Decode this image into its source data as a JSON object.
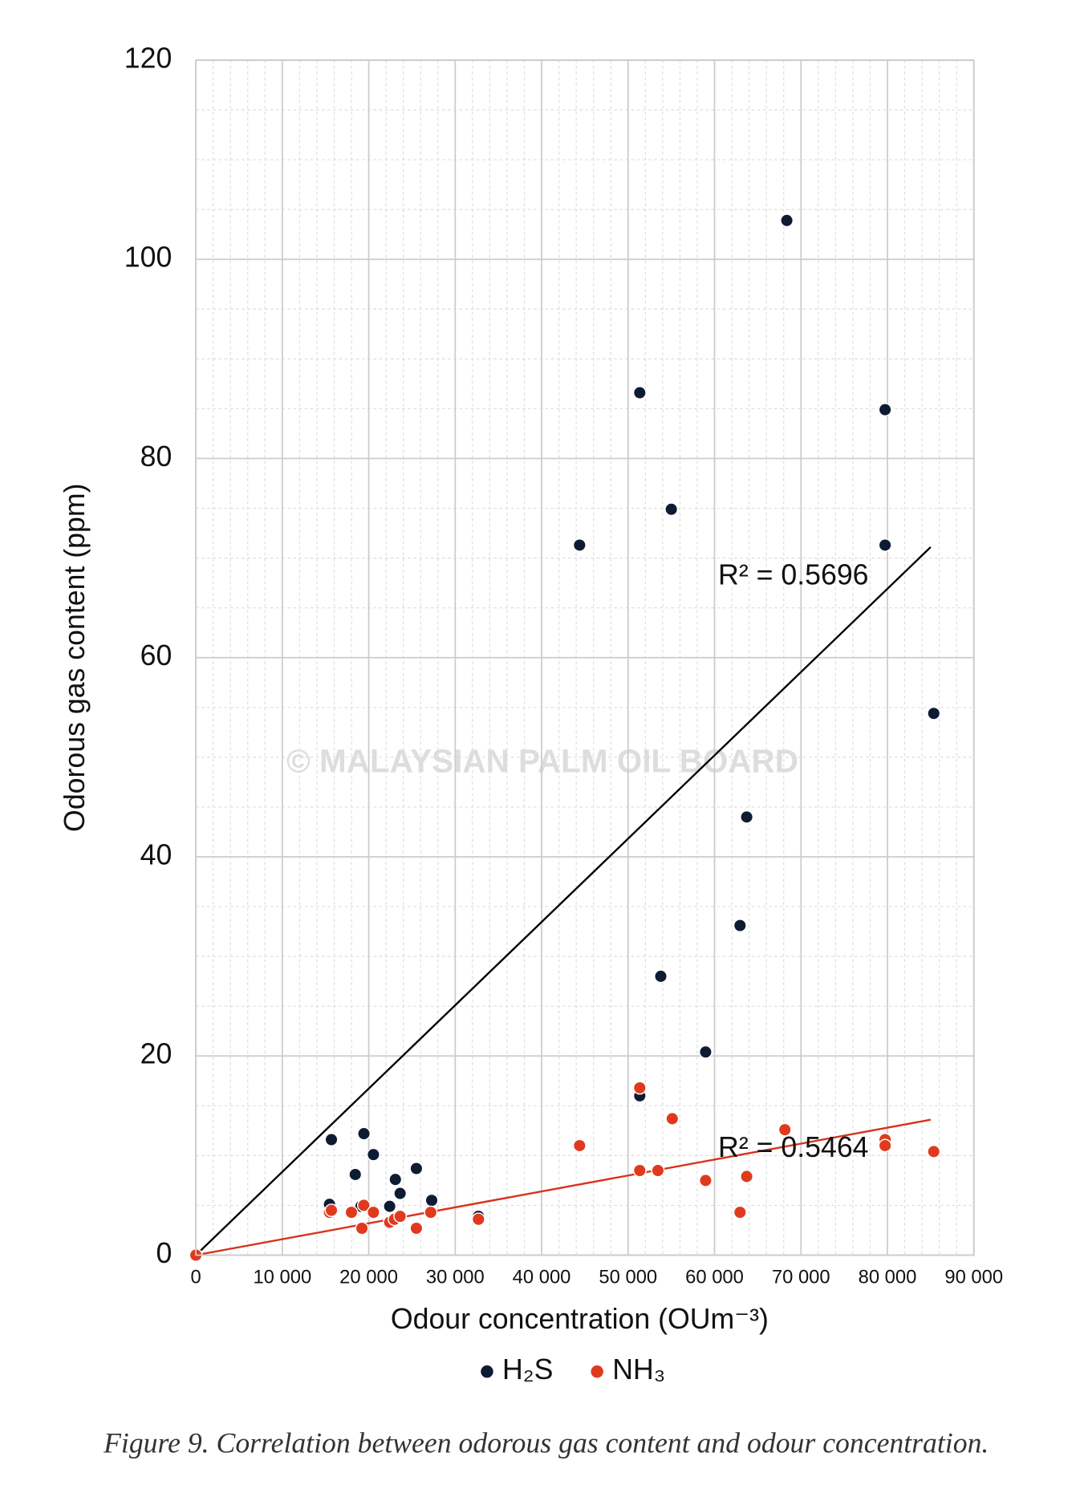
{
  "chart_data": {
    "type": "scatter",
    "caption": "Figure 9. Correlation between odorous gas content and odour concentration.",
    "x_label": "Odour concentration (OUm⁻³)",
    "y_label": "Odorous gas content (ppm)",
    "watermark": "© MALAYSIAN PALM OIL BOARD",
    "xlim": [
      0,
      90000
    ],
    "xticks": [
      0,
      {
        "value": 10000,
        "label": "10 000"
      },
      {
        "value": 20000,
        "label": "20 000"
      },
      {
        "value": 30000,
        "label": "30 000"
      },
      {
        "value": 40000,
        "label": "40 000"
      },
      {
        "value": 50000,
        "label": "50 000"
      },
      {
        "value": 60000,
        "label": "60 000"
      },
      {
        "value": 70000,
        "label": "70 000"
      },
      {
        "value": 80000,
        "label": "80 000"
      },
      {
        "value": 90000,
        "label": "90 000"
      }
    ],
    "ylim": [
      0,
      120
    ],
    "yticks": [
      0,
      20,
      40,
      60,
      80,
      100,
      120
    ],
    "grid": true,
    "legend": "bottom",
    "series": [
      {
        "name": "H₂S",
        "color": "#0d1b33",
        "x": [
          0,
          15460,
          15680,
          18440,
          19100,
          19440,
          20540,
          22420,
          23080,
          23630,
          25510,
          27280,
          32690,
          44390,
          51350,
          51350,
          53780,
          55000,
          58970,
          62950,
          63720,
          68360,
          79730,
          79730,
          85360
        ],
        "values": [
          0,
          5.1,
          11.6,
          8.1,
          4.9,
          12.2,
          10.1,
          4.9,
          7.6,
          6.2,
          8.7,
          5.5,
          3.9,
          71.3,
          86.6,
          16.0,
          28.0,
          74.9,
          20.4,
          33.1,
          44.0,
          103.9,
          84.9,
          71.3,
          54.4
        ],
        "trendline": {
          "color": "#000000",
          "x": [
            0,
            85000
          ],
          "y": [
            0,
            71.1
          ],
          "label": "R² = 0.5696"
        }
      },
      {
        "name": "NH₃",
        "color": "#e03a1e",
        "x": [
          0,
          15460,
          15680,
          18000,
          19210,
          19430,
          20540,
          22420,
          22970,
          23630,
          25510,
          27170,
          32690,
          44390,
          51350,
          51350,
          53450,
          55110,
          58970,
          62950,
          63720,
          68140,
          79730,
          79730,
          85360
        ],
        "values": [
          0,
          4.3,
          4.5,
          4.3,
          2.7,
          5.0,
          4.3,
          3.3,
          3.6,
          3.9,
          2.7,
          4.3,
          3.6,
          11.0,
          16.8,
          8.5,
          8.5,
          13.7,
          7.5,
          4.3,
          7.9,
          12.6,
          11.6,
          11.0,
          10.4
        ],
        "trendline": {
          "color": "#d8321c",
          "x": [
            0,
            85000
          ],
          "y": [
            0,
            13.6
          ],
          "label": "R² = 0.5464"
        }
      }
    ]
  }
}
